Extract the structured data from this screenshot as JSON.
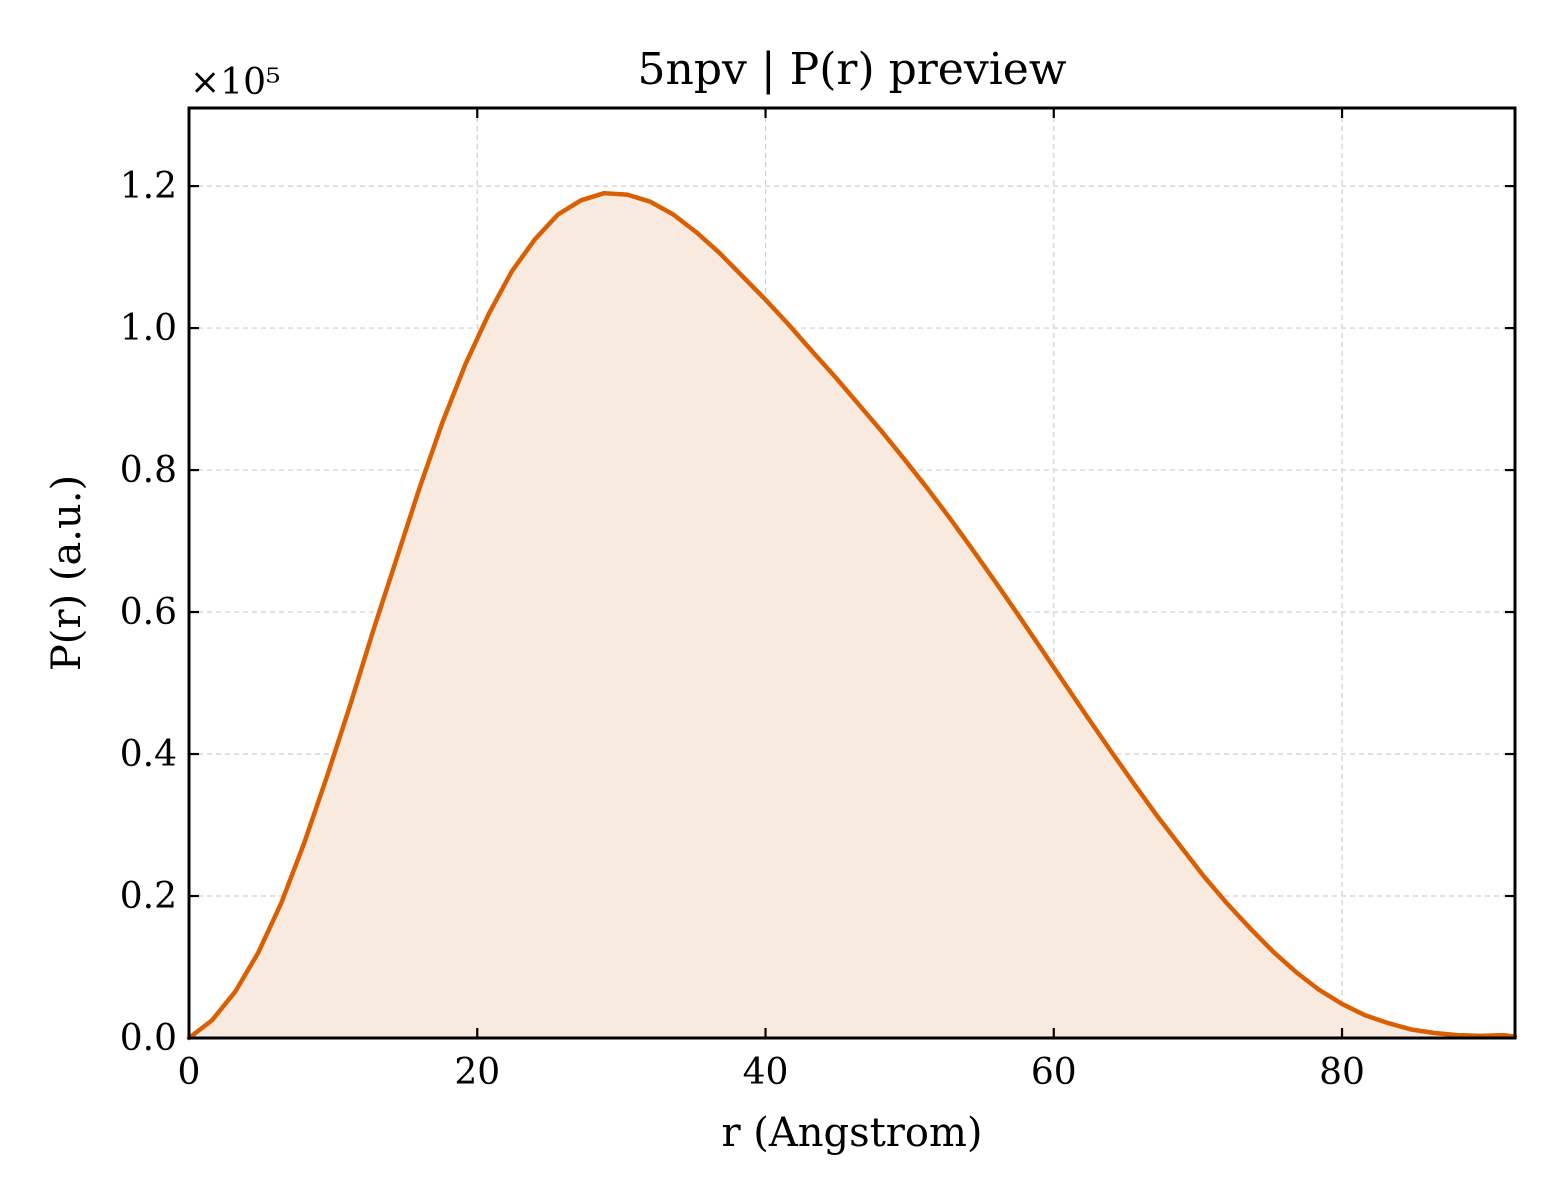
{
  "chart_data": {
    "type": "area",
    "title": "5npv | P(r) preview",
    "xlabel": "r (Angstrom)",
    "ylabel": "P(r) (a.u.)",
    "y_scale_label": "×10⁵",
    "xlim": [
      0,
      92
    ],
    "ylim": [
      0,
      1.31
    ],
    "y_multiplier": 100000,
    "xticks": [
      0,
      20,
      40,
      60,
      80
    ],
    "xtick_labels": [
      "0",
      "20",
      "40",
      "60",
      "80"
    ],
    "yticks": [
      0.0,
      0.2,
      0.4,
      0.6,
      0.8,
      1.0,
      1.2
    ],
    "ytick_labels": [
      "0.0",
      "0.2",
      "0.4",
      "0.6",
      "0.8",
      "1.0",
      "1.2"
    ],
    "grid": true,
    "colors": {
      "line": "#d95f02",
      "fill": "#f9eadf"
    },
    "series": [
      {
        "x": [
          0,
          1.6,
          3.2,
          4.8,
          6.4,
          8.0,
          9.6,
          11.2,
          12.8,
          14.4,
          16.0,
          17.6,
          19.2,
          20.8,
          22.4,
          24.0,
          25.6,
          27.2,
          28.8,
          30.4,
          32.0,
          33.6,
          35.2,
          36.8,
          38.4,
          40.0,
          41.6,
          43.2,
          44.8,
          46.4,
          48.0,
          49.6,
          51.2,
          52.8,
          54.4,
          56.0,
          57.6,
          59.2,
          60.8,
          62.4,
          64.0,
          65.6,
          67.2,
          68.8,
          70.4,
          72.0,
          73.6,
          75.2,
          76.8,
          78.4,
          80.0,
          81.6,
          83.2,
          84.8,
          86.4,
          88.0,
          89.6,
          91.2,
          92.0
        ],
        "y": [
          0.0,
          0.025,
          0.065,
          0.12,
          0.19,
          0.275,
          0.37,
          0.47,
          0.575,
          0.675,
          0.775,
          0.868,
          0.95,
          1.02,
          1.08,
          1.125,
          1.16,
          1.18,
          1.19,
          1.188,
          1.178,
          1.16,
          1.135,
          1.106,
          1.073,
          1.04,
          1.005,
          0.968,
          0.932,
          0.894,
          0.856,
          0.816,
          0.775,
          0.732,
          0.687,
          0.641,
          0.594,
          0.546,
          0.498,
          0.45,
          0.403,
          0.357,
          0.312,
          0.27,
          0.228,
          0.19,
          0.155,
          0.122,
          0.093,
          0.068,
          0.048,
          0.032,
          0.021,
          0.012,
          0.007,
          0.004,
          0.003,
          0.004,
          0.002
        ]
      }
    ]
  }
}
